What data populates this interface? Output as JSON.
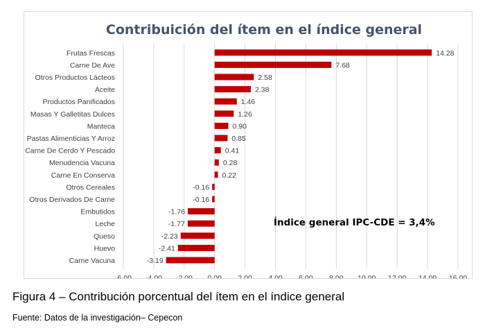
{
  "chart_data": {
    "type": "bar",
    "orientation": "horizontal",
    "title": "Contribuición del ítem en el índice general",
    "categories": [
      "Frutas Frescas",
      "Carne De Ave",
      "Otros Productos Lácteos",
      "Aceite",
      "Productos Panificados",
      "Masas Y Galletitas Dulces",
      "Manteca",
      "Pastas Alimenticias Y Arroz",
      "Carne De Cerdo Y Pescado",
      "Menudencia Vacuna",
      "Carne En Conserva",
      "Otros Cereales",
      "Otros Derivados De Carne",
      "Embutidos",
      "Leche",
      "Queso",
      "Huevo",
      "Carne Vacuna"
    ],
    "values": [
      14.28,
      7.68,
      2.58,
      2.38,
      1.46,
      1.26,
      0.9,
      0.85,
      0.41,
      0.28,
      0.22,
      -0.16,
      -0.16,
      -1.76,
      -1.77,
      -2.23,
      -2.41,
      -3.19
    ],
    "value_labels": [
      "14.28",
      "7.68",
      "2.58",
      "2.38",
      "1.46",
      "1.26",
      "0.90",
      "0.85",
      "0.41",
      "0.28",
      "0.22",
      "-0.16",
      "-0.16",
      "-1.76",
      "-1.77",
      "-2.23",
      "-2.41",
      "-3.19"
    ],
    "xlim": [
      -6,
      16
    ],
    "xticks": [
      "-6.00",
      "-4.00",
      "-2.00",
      "0.00",
      "2.00",
      "4.00",
      "6.00",
      "8.00",
      "10.00",
      "12.00",
      "14.00",
      "16.00"
    ],
    "xtick_values": [
      -6,
      -4,
      -2,
      0,
      2,
      4,
      6,
      8,
      10,
      12,
      14,
      16
    ],
    "grid": "vertical",
    "bar_color": "#c00000",
    "annotation": "Índice general IPC-CDE = 3,4%"
  },
  "caption": "Figura 4 – Contribución porcentual del ítem en el índice general",
  "source": "Fuente: Datos de la investigación– Cepecon"
}
